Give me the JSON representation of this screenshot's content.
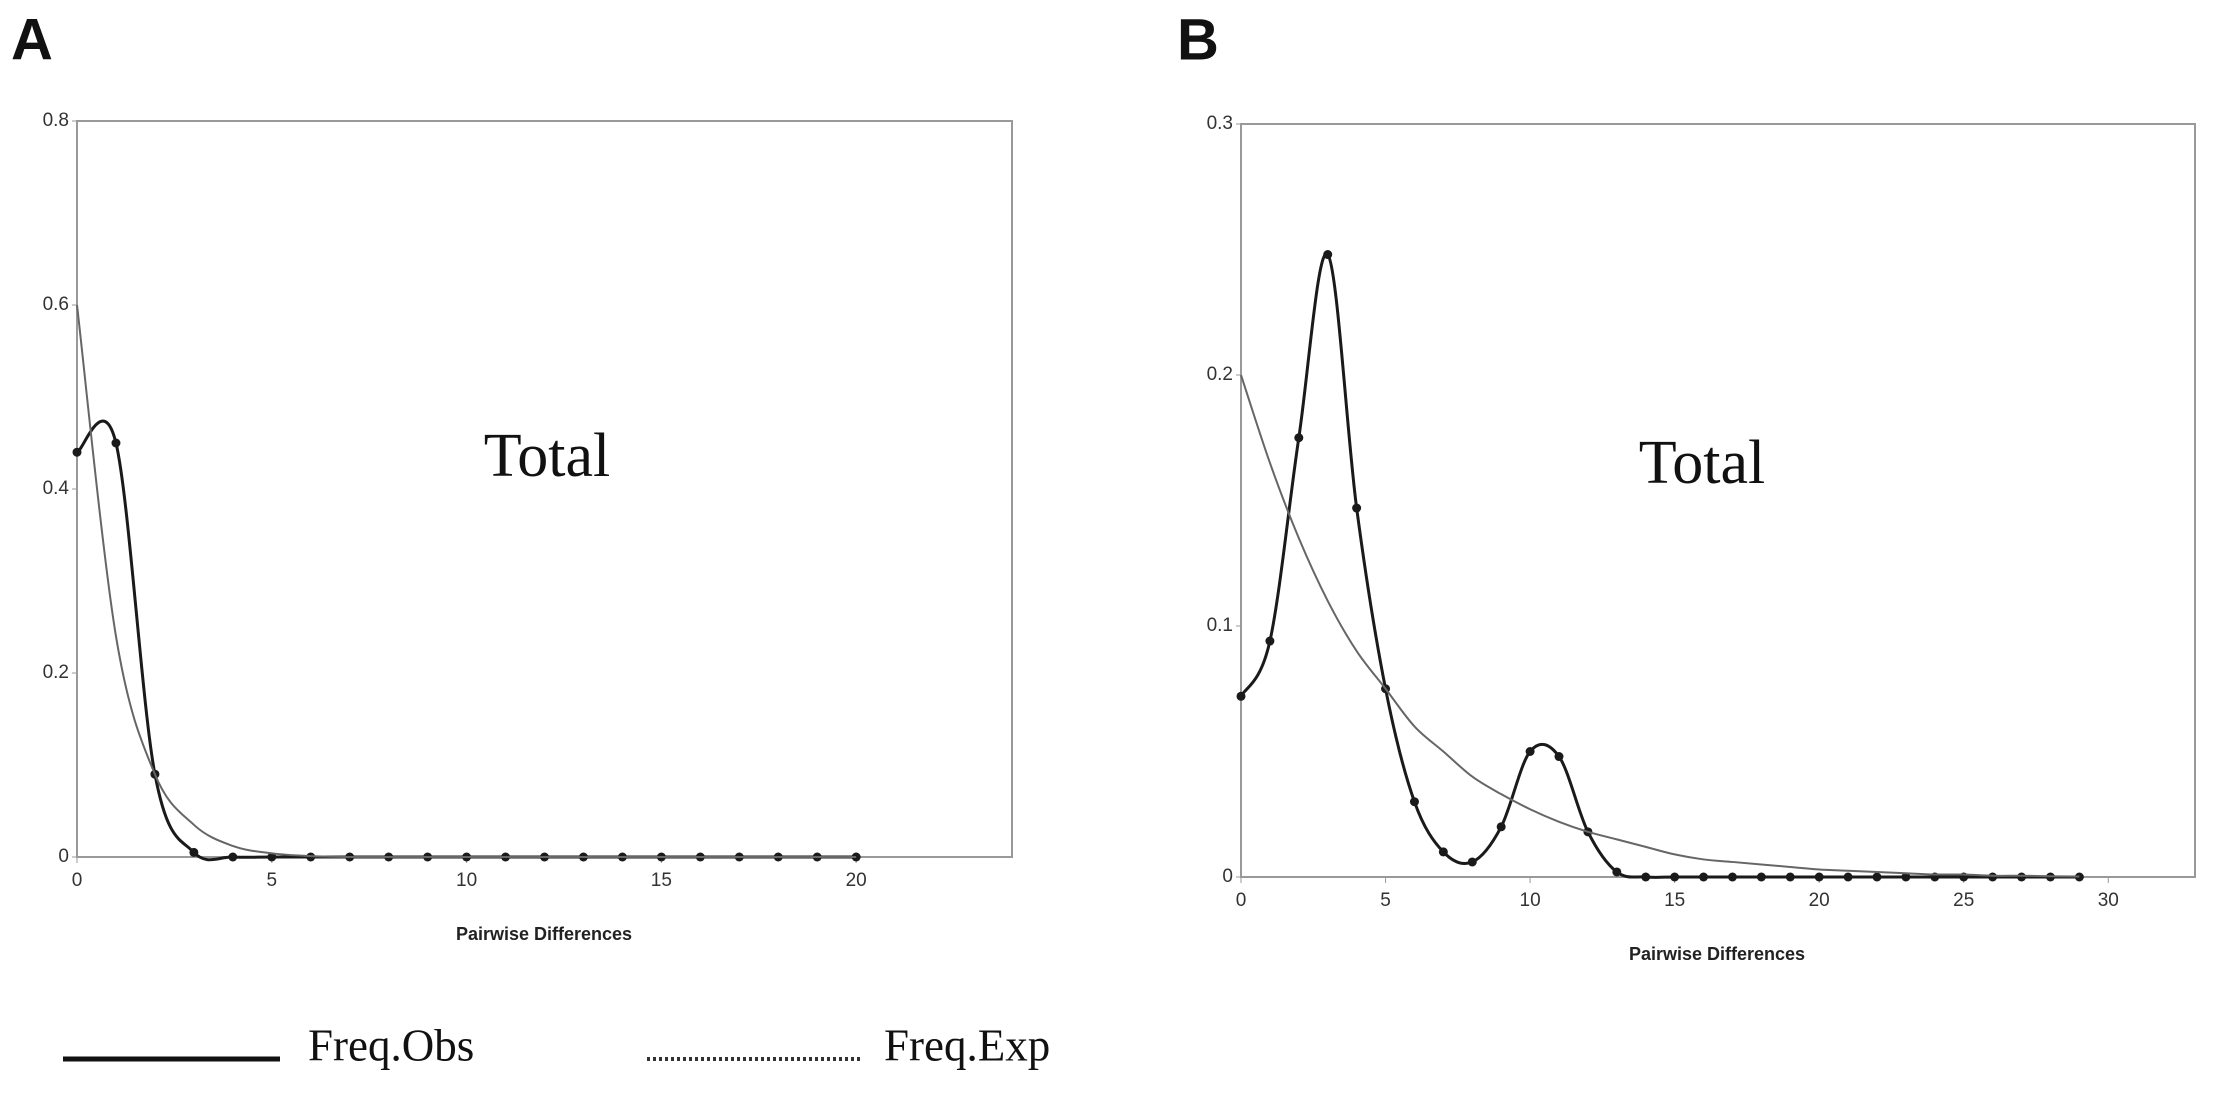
{
  "chart_data": [
    {
      "type": "line",
      "panel": "A",
      "title": "Total",
      "x_label": "Pairwise Differences",
      "xlim": [
        0,
        24
      ],
      "ylim": [
        0,
        0.8
      ],
      "xticks": [
        0,
        5,
        10,
        15,
        20
      ],
      "yticks": [
        0,
        0.2,
        0.4,
        0.6,
        0.8
      ],
      "x": [
        0,
        1,
        2,
        3,
        4,
        5,
        6,
        7,
        8,
        9,
        10,
        11,
        12,
        13,
        14,
        15,
        16,
        17,
        18,
        19,
        20
      ],
      "series": [
        {
          "name": "Freq.Obs",
          "color": "#1a1a1a",
          "markers": true,
          "values": [
            0.44,
            0.45,
            0.09,
            0.005,
            0,
            0,
            0,
            0,
            0,
            0,
            0,
            0,
            0,
            0,
            0,
            0,
            0,
            0,
            0,
            0,
            0
          ]
        },
        {
          "name": "Freq.Exp",
          "color": "#666666",
          "markers": false,
          "values": [
            0.6,
            0.24,
            0.09,
            0.035,
            0.012,
            0.004,
            0.001,
            0,
            0,
            0,
            0,
            0,
            0,
            0,
            0,
            0,
            0,
            0,
            0,
            0,
            0
          ]
        }
      ]
    },
    {
      "type": "line",
      "panel": "B",
      "title": "Total",
      "x_label": "Pairwise Differences",
      "xlim": [
        0,
        33
      ],
      "ylim": [
        0,
        0.3
      ],
      "xticks": [
        0,
        5,
        10,
        15,
        20,
        25,
        30
      ],
      "yticks": [
        0,
        0.1,
        0.2,
        0.3
      ],
      "x": [
        0,
        1,
        2,
        3,
        4,
        5,
        6,
        7,
        8,
        9,
        10,
        11,
        12,
        13,
        14,
        15,
        16,
        17,
        18,
        19,
        20,
        21,
        22,
        23,
        24,
        25,
        26,
        27,
        28,
        29
      ],
      "series": [
        {
          "color": "#1a1a1a",
          "markers": true,
          "values": [
            0.072,
            0.094,
            0.175,
            0.248,
            0.147,
            0.075,
            0.03,
            0.01,
            0.006,
            0.02,
            0.05,
            0.048,
            0.018,
            0.002,
            0,
            0,
            0,
            0,
            0,
            0,
            0,
            0,
            0,
            0,
            0,
            0,
            0,
            0,
            0,
            0
          ]
        },
        {
          "color": "#666666",
          "markers": false,
          "values": [
            0.2,
            0.165,
            0.135,
            0.11,
            0.09,
            0.075,
            0.06,
            0.05,
            0.04,
            0.033,
            0.027,
            0.022,
            0.018,
            0.015,
            0.012,
            0.009,
            0.007,
            0.006,
            0.005,
            0.004,
            0.003,
            0.0025,
            0.002,
            0.0015,
            0.001,
            0.001,
            0.0005,
            0.0005,
            0.0003,
            0.0002
          ]
        }
      ]
    }
  ]
}
